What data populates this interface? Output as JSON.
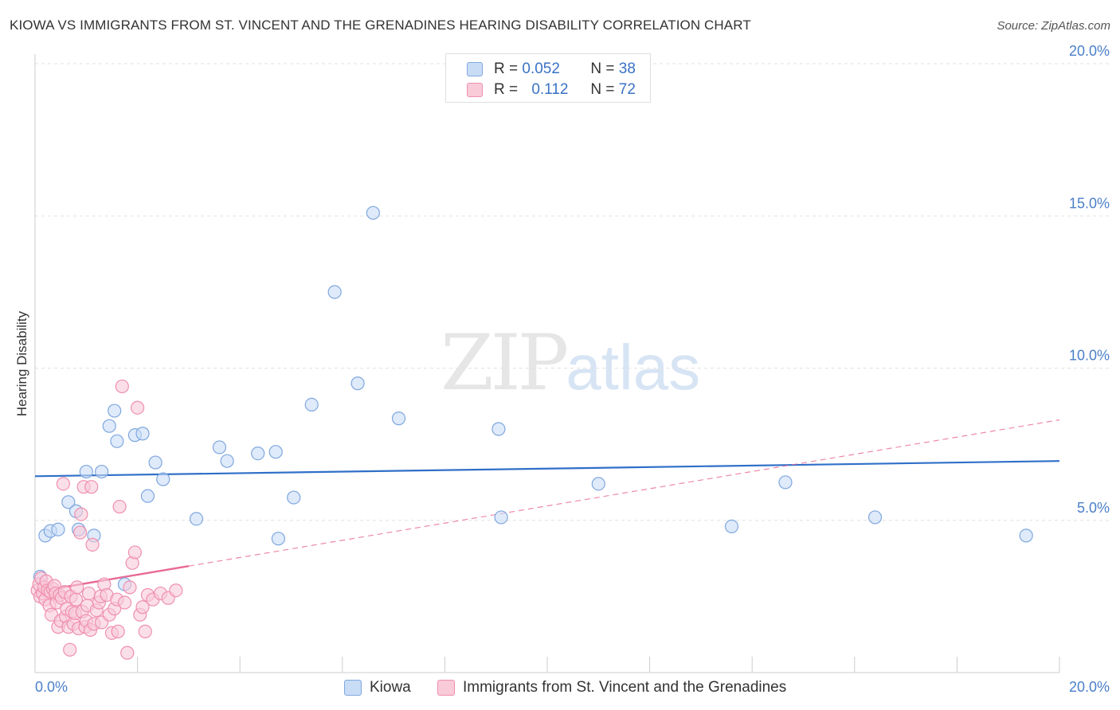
{
  "title": "KIOWA VS IMMIGRANTS FROM ST. VINCENT AND THE GRENADINES HEARING DISABILITY CORRELATION CHART",
  "source": "Source: ZipAtlas.com",
  "watermark": {
    "zip": "ZIP",
    "atlas": "atlas"
  },
  "legend_top": {
    "rows": [
      {
        "r_label": "R =",
        "r_value": "0.052",
        "n_label": "N =",
        "n_value": "38"
      },
      {
        "r_label": "R =",
        "r_value": "0.112",
        "n_label": "N =",
        "n_value": "72"
      }
    ]
  },
  "colors": {
    "kiowa_fill": "#c9dcf6",
    "kiowa_stroke": "#7fa7de",
    "kiowa_line": "#2f6fc8",
    "svg_fill": "#f9cad8",
    "svg_stroke": "#ef8fae",
    "svg_line": "#e86a93",
    "grid": "#e2e2e2",
    "axis": "#cccccc",
    "tick_text": "#4a7fc9"
  },
  "chart_data": {
    "type": "scatter",
    "title": "KIOWA VS IMMIGRANTS FROM ST. VINCENT AND THE GRENADINES HEARING DISABILITY CORRELATION CHART",
    "xlabel": "",
    "ylabel": "Hearing Disability",
    "xlim": [
      0,
      20
    ],
    "ylim": [
      0,
      20.5
    ],
    "x_tick_labels": [
      "0.0%",
      "20.0%"
    ],
    "y_ticks": [
      5,
      10,
      15,
      20
    ],
    "y_tick_labels": [
      "5.0%",
      "10.0%",
      "15.0%",
      "20.0%"
    ],
    "grid": true,
    "legend_position": "bottom-center",
    "series": [
      {
        "name": "Kiowa",
        "R": 0.052,
        "N": 38,
        "trend": {
          "x": [
            0,
            20
          ],
          "y": [
            6.45,
            6.95
          ],
          "style": "solid"
        },
        "points": [
          [
            0.1,
            3.15
          ],
          [
            0.2,
            4.5
          ],
          [
            0.3,
            4.65
          ],
          [
            0.45,
            4.7
          ],
          [
            0.65,
            5.6
          ],
          [
            0.8,
            5.3
          ],
          [
            0.85,
            4.7
          ],
          [
            1.0,
            6.6
          ],
          [
            1.15,
            4.5
          ],
          [
            1.3,
            6.6
          ],
          [
            1.45,
            8.1
          ],
          [
            1.55,
            8.6
          ],
          [
            1.6,
            7.6
          ],
          [
            1.75,
            2.9
          ],
          [
            1.95,
            7.8
          ],
          [
            2.1,
            7.85
          ],
          [
            2.2,
            5.8
          ],
          [
            2.35,
            6.9
          ],
          [
            2.5,
            6.35
          ],
          [
            3.15,
            5.05
          ],
          [
            3.6,
            7.4
          ],
          [
            3.75,
            6.95
          ],
          [
            4.35,
            7.2
          ],
          [
            4.7,
            7.25
          ],
          [
            4.75,
            4.4
          ],
          [
            5.05,
            5.75
          ],
          [
            5.4,
            8.8
          ],
          [
            5.85,
            12.5
          ],
          [
            6.3,
            9.5
          ],
          [
            6.6,
            15.1
          ],
          [
            7.1,
            8.35
          ],
          [
            9.05,
            8.0
          ],
          [
            9.1,
            5.1
          ],
          [
            11.0,
            6.2
          ],
          [
            13.6,
            4.8
          ],
          [
            14.65,
            6.25
          ],
          [
            16.4,
            5.1
          ],
          [
            19.35,
            4.5
          ]
        ]
      },
      {
        "name": "Immigrants from St. Vincent and the Grenadines",
        "R": 0.112,
        "N": 72,
        "trend": {
          "x": [
            0,
            20
          ],
          "y": [
            2.65,
            8.3
          ],
          "style": "dashed",
          "solid_until_x": 3.0
        },
        "points": [
          [
            0.05,
            2.7
          ],
          [
            0.08,
            2.9
          ],
          [
            0.1,
            2.5
          ],
          [
            0.12,
            3.1
          ],
          [
            0.15,
            2.6
          ],
          [
            0.18,
            2.8
          ],
          [
            0.2,
            2.4
          ],
          [
            0.22,
            3.0
          ],
          [
            0.25,
            2.7
          ],
          [
            0.28,
            2.2
          ],
          [
            0.3,
            2.65
          ],
          [
            0.32,
            1.9
          ],
          [
            0.35,
            2.75
          ],
          [
            0.38,
            2.85
          ],
          [
            0.4,
            2.6
          ],
          [
            0.42,
            2.3
          ],
          [
            0.45,
            1.5
          ],
          [
            0.48,
            2.55
          ],
          [
            0.5,
            1.7
          ],
          [
            0.52,
            2.45
          ],
          [
            0.55,
            6.2
          ],
          [
            0.58,
            2.65
          ],
          [
            0.6,
            1.85
          ],
          [
            0.62,
            2.1
          ],
          [
            0.65,
            1.5
          ],
          [
            0.68,
            0.75
          ],
          [
            0.7,
            2.5
          ],
          [
            0.72,
            2.0
          ],
          [
            0.75,
            1.6
          ],
          [
            0.78,
            1.95
          ],
          [
            0.8,
            2.4
          ],
          [
            0.82,
            2.8
          ],
          [
            0.85,
            1.45
          ],
          [
            0.88,
            4.6
          ],
          [
            0.9,
            5.2
          ],
          [
            0.92,
            2.0
          ],
          [
            0.95,
            6.1
          ],
          [
            0.98,
            1.5
          ],
          [
            1.0,
            1.7
          ],
          [
            1.02,
            2.2
          ],
          [
            1.05,
            2.6
          ],
          [
            1.08,
            1.4
          ],
          [
            1.1,
            6.1
          ],
          [
            1.12,
            4.2
          ],
          [
            1.15,
            1.6
          ],
          [
            1.2,
            2.05
          ],
          [
            1.25,
            2.3
          ],
          [
            1.28,
            2.5
          ],
          [
            1.3,
            1.65
          ],
          [
            1.35,
            2.9
          ],
          [
            1.4,
            2.55
          ],
          [
            1.45,
            1.9
          ],
          [
            1.5,
            1.3
          ],
          [
            1.55,
            2.1
          ],
          [
            1.6,
            2.4
          ],
          [
            1.62,
            1.35
          ],
          [
            1.65,
            5.45
          ],
          [
            1.7,
            9.4
          ],
          [
            1.75,
            2.3
          ],
          [
            1.8,
            0.65
          ],
          [
            1.85,
            2.8
          ],
          [
            1.9,
            3.6
          ],
          [
            1.95,
            3.95
          ],
          [
            2.0,
            8.7
          ],
          [
            2.05,
            1.9
          ],
          [
            2.1,
            2.15
          ],
          [
            2.15,
            1.35
          ],
          [
            2.2,
            2.55
          ],
          [
            2.3,
            2.4
          ],
          [
            2.45,
            2.6
          ],
          [
            2.6,
            2.45
          ],
          [
            2.75,
            2.7
          ]
        ]
      }
    ]
  },
  "legend_bottom": {
    "items": [
      {
        "label": "Kiowa"
      },
      {
        "label": "Immigrants from St. Vincent and the Grenadines"
      }
    ]
  }
}
